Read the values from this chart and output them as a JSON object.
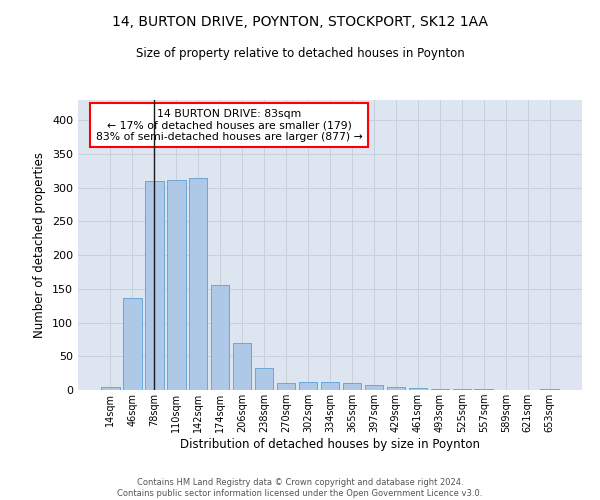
{
  "title1": "14, BURTON DRIVE, POYNTON, STOCKPORT, SK12 1AA",
  "title2": "Size of property relative to detached houses in Poynton",
  "xlabel": "Distribution of detached houses by size in Poynton",
  "ylabel": "Number of detached properties",
  "categories": [
    "14sqm",
    "46sqm",
    "78sqm",
    "110sqm",
    "142sqm",
    "174sqm",
    "206sqm",
    "238sqm",
    "270sqm",
    "302sqm",
    "334sqm",
    "365sqm",
    "397sqm",
    "429sqm",
    "461sqm",
    "493sqm",
    "525sqm",
    "557sqm",
    "589sqm",
    "621sqm",
    "653sqm"
  ],
  "values": [
    4,
    137,
    310,
    312,
    315,
    155,
    70,
    32,
    10,
    12,
    12,
    10,
    7,
    4,
    3,
    2,
    1,
    1,
    0,
    0,
    2
  ],
  "bar_color": "#aec9e8",
  "bar_edge_color": "#5a9fd4",
  "vline_x": 2,
  "vline_color": "#1a1a1a",
  "annotation_text": "14 BURTON DRIVE: 83sqm\n← 17% of detached houses are smaller (179)\n83% of semi-detached houses are larger (877) →",
  "annotation_box_color": "white",
  "annotation_box_edge": "red",
  "ylim": [
    0,
    430
  ],
  "yticks": [
    0,
    50,
    100,
    150,
    200,
    250,
    300,
    350,
    400
  ],
  "grid_color": "#c8d0dc",
  "background_color": "#dde5f0",
  "footer1": "Contains HM Land Registry data © Crown copyright and database right 2024.",
  "footer2": "Contains public sector information licensed under the Open Government Licence v3.0."
}
